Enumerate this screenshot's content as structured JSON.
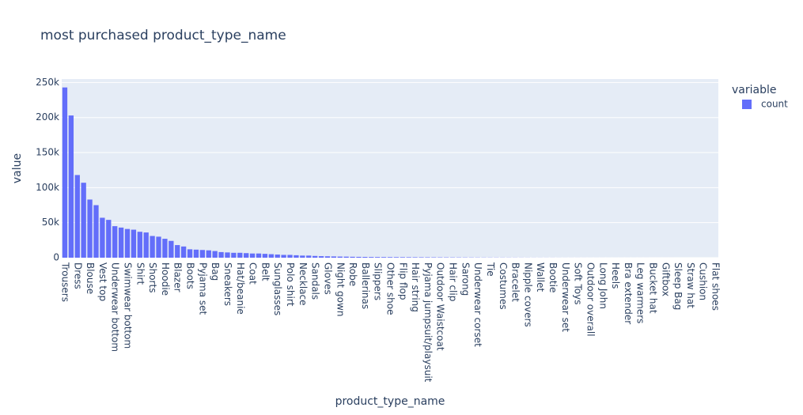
{
  "chart_data": {
    "type": "bar",
    "title": "most purchased product_type_name",
    "x_label": "product_type_name",
    "y_label": "value",
    "legend_title": "variable",
    "legend_position": "right",
    "grid": true,
    "categories": [
      "Trousers",
      null,
      "Dress",
      null,
      "Blouse",
      null,
      "Vest top",
      null,
      "Underwear bottom",
      null,
      "Swimwear bottom",
      null,
      "Shirt",
      null,
      "Shorts",
      null,
      "Hoodie",
      null,
      "Blazer",
      null,
      "Boots",
      null,
      "Pyjama set",
      null,
      "Bag",
      null,
      "Sneakers",
      null,
      "Hat/beanie",
      null,
      "Coat",
      null,
      "Belt",
      null,
      "Sunglasses",
      null,
      "Polo shirt",
      null,
      "Necklace",
      null,
      "Sandals",
      null,
      "Gloves",
      null,
      "Night gown",
      null,
      "Robe",
      null,
      "Ballerinas",
      null,
      "Slippers",
      null,
      "Other shoe",
      null,
      "Flip flop",
      null,
      "Hair string",
      null,
      "Pyjama jumpsuit/playsuit",
      null,
      "Outdoor Waistcoat",
      null,
      "Hair clip",
      null,
      "Sarong",
      null,
      "Underwear corset",
      null,
      "Tie",
      null,
      "Costumes",
      null,
      "Bracelet",
      null,
      "Nipple covers",
      null,
      "Wallet",
      null,
      "Bootie",
      null,
      "Underwear set",
      null,
      "Soft Toys",
      null,
      "Outdoor overall",
      null,
      "Long John",
      null,
      "Heels",
      null,
      "Bra extender",
      null,
      "Leg warmers",
      null,
      "Bucket hat",
      null,
      "Giftbox",
      null,
      "Sleep Bag",
      null,
      "Straw hat",
      null,
      "Cushion",
      null,
      "Flat shoes"
    ],
    "series": [
      {
        "name": "count",
        "color": "#636efa",
        "values": [
          243000,
          203000,
          118000,
          107000,
          83000,
          75000,
          57000,
          54000,
          45000,
          43000,
          41000,
          40000,
          37000,
          36000,
          31000,
          30000,
          27000,
          24000,
          18000,
          16000,
          12000,
          11500,
          11000,
          10500,
          9500,
          8000,
          7500,
          7000,
          7000,
          6500,
          6000,
          6000,
          5500,
          5000,
          4500,
          4000,
          4000,
          3500,
          3000,
          3000,
          2500,
          2200,
          2000,
          1800,
          1600,
          1500,
          1300,
          1200,
          1100,
          1000,
          950,
          900,
          850,
          800,
          750,
          700,
          650,
          600,
          560,
          520,
          480,
          440,
          400,
          370,
          340,
          310,
          280,
          250,
          230,
          210,
          190,
          170,
          150,
          130,
          115,
          100,
          90,
          80,
          70,
          60,
          50,
          45,
          40,
          35,
          30,
          27,
          24,
          21,
          18,
          15,
          13,
          11,
          9,
          8,
          7,
          6,
          5,
          4,
          3,
          3,
          2,
          2,
          1,
          1,
          1
        ]
      }
    ],
    "ylim": [
      0,
      255000
    ],
    "yticks": [
      0,
      {
        "value": 50000,
        "label": "50k"
      },
      {
        "value": 100000,
        "label": "100k"
      },
      {
        "value": 150000,
        "label": "150k"
      },
      {
        "value": 200000,
        "label": "200k"
      },
      {
        "value": 250000,
        "label": "250k"
      }
    ]
  }
}
